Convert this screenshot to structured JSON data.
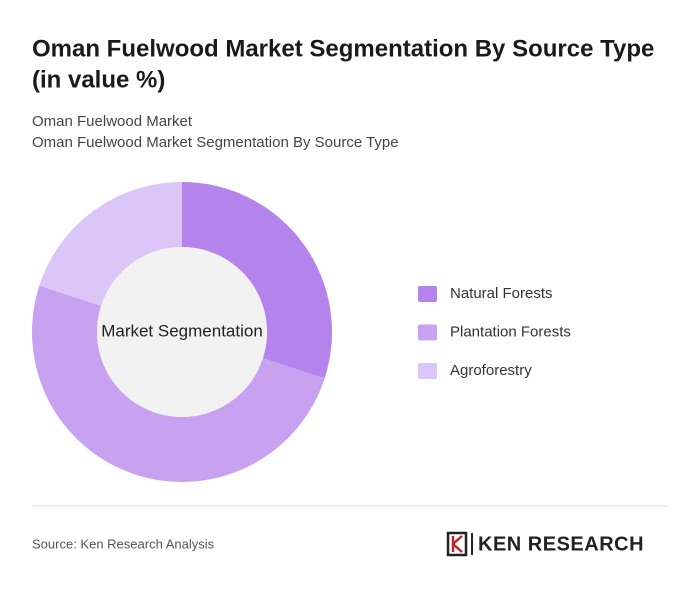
{
  "chart_data": {
    "type": "donut",
    "title": "Oman Fuelwood Market Segmentation By Source Type",
    "title_line2": "(in value %)",
    "subtitle": [
      "Oman Fuelwood Market",
      "Oman Fuelwood Market Segmentation By Source Type"
    ],
    "center_label": "Market Segmentation",
    "categories": [
      "Natural Forests",
      "Plantation Forests",
      "Agroforestry"
    ],
    "values": [
      30,
      50,
      20
    ],
    "colors": [
      "#b583ec",
      "#c8a2f1",
      "#dcc6f7"
    ],
    "source": "Source: Ken Research Analysis",
    "logo": "KEN RESEARCH"
  }
}
